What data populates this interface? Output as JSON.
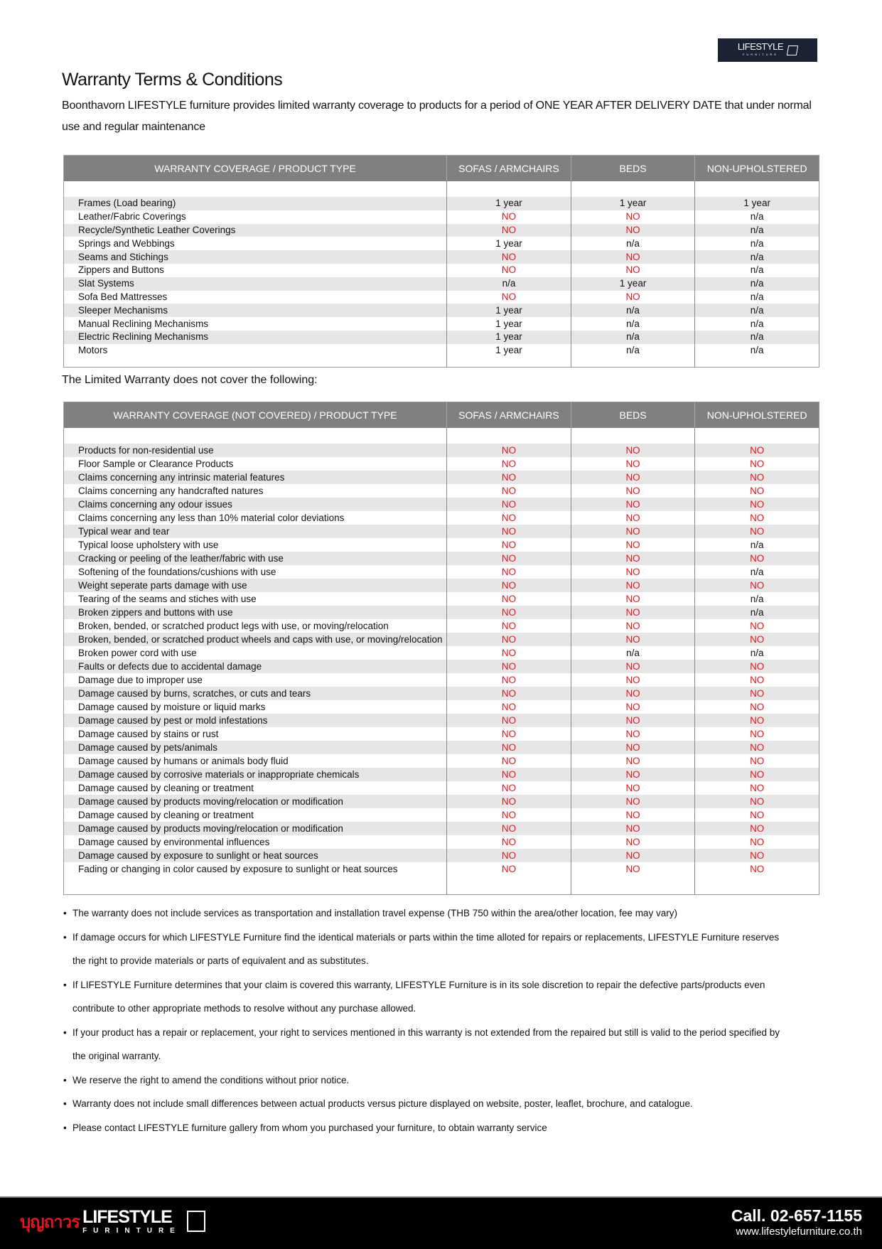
{
  "logo": {
    "brand": "LIFESTYLE",
    "sub": "FURNITURE"
  },
  "title": "Warranty Terms & Conditions",
  "intro": "Boonthavorn LIFESTYLE furniture provides limited warranty coverage to products for a period of ONE YEAR AFTER DELIVERY DATE that under normal use and regular maintenance",
  "colors": {
    "header_bg": "#808080",
    "no_red": "#e0161e",
    "stripe": "#e6e6e6",
    "footer_bg": "#000000"
  },
  "table1": {
    "headers": [
      "WARRANTY COVERAGE / PRODUCT TYPE",
      "SOFAS / ARMCHAIRS",
      "BEDS",
      "NON-UPHOLSTERED"
    ],
    "rows": [
      [
        "Frames (Load bearing)",
        "1 year",
        "1 year",
        "1 year"
      ],
      [
        "Leather/Fabric Coverings",
        "NO",
        "NO",
        "n/a"
      ],
      [
        "Recycle/Synthetic Leather Coverings",
        "NO",
        "NO",
        "n/a"
      ],
      [
        "Springs and Webbings",
        "1 year",
        "n/a",
        "n/a"
      ],
      [
        "Seams and Stichings",
        "NO",
        "NO",
        "n/a"
      ],
      [
        "Zippers and Buttons",
        "NO",
        "NO",
        "n/a"
      ],
      [
        "Slat Systems",
        "n/a",
        "1 year",
        "n/a"
      ],
      [
        "Sofa Bed Mattresses",
        "NO",
        "NO",
        "n/a"
      ],
      [
        "Sleeper Mechanisms",
        "1 year",
        "n/a",
        "n/a"
      ],
      [
        "Manual Reclining Mechanisms",
        "1 year",
        "n/a",
        "n/a"
      ],
      [
        "Electric Reclining Mechanisms",
        "1 year",
        "n/a",
        "n/a"
      ],
      [
        "Motors",
        "1 year",
        "n/a",
        "n/a"
      ]
    ]
  },
  "subtitle": "The Limited Warranty does not cover the following:",
  "table2": {
    "headers": [
      "WARRANTY COVERAGE (NOT COVERED) / PRODUCT TYPE",
      "SOFAS / ARMCHAIRS",
      "BEDS",
      "NON-UPHOLSTERED"
    ],
    "rows": [
      [
        "Products for non-residential use",
        "NO",
        "NO",
        "NO"
      ],
      [
        "Floor Sample or Clearance Products",
        "NO",
        "NO",
        "NO"
      ],
      [
        "Claims concerning any intrinsic material features",
        "NO",
        "NO",
        "NO"
      ],
      [
        "Claims concerning any handcrafted natures",
        "NO",
        "NO",
        "NO"
      ],
      [
        "Claims concerning any odour issues",
        "NO",
        "NO",
        "NO"
      ],
      [
        "Claims concerning any less than 10% material color deviations",
        "NO",
        "NO",
        "NO"
      ],
      [
        "Typical wear and tear",
        "NO",
        "NO",
        "NO"
      ],
      [
        "Typical loose upholstery with use",
        "NO",
        "NO",
        "n/a"
      ],
      [
        "Cracking or peeling of the leather/fabric with use",
        "NO",
        "NO",
        "NO"
      ],
      [
        "Softening of the foundations/cushions with use",
        "NO",
        "NO",
        "n/a"
      ],
      [
        "Weight seperate parts damage with use",
        "NO",
        "NO",
        "NO"
      ],
      [
        "Tearing of the seams and stiches with use",
        "NO",
        "NO",
        "n/a"
      ],
      [
        "Broken zippers and buttons with use",
        "NO",
        "NO",
        "n/a"
      ],
      [
        "Broken, bended, or scratched product legs with use, or moving/relocation",
        "NO",
        "NO",
        "NO"
      ],
      [
        "Broken, bended, or scratched product wheels and caps with use, or moving/relocation",
        "NO",
        "NO",
        "NO"
      ],
      [
        "Broken power cord with use",
        "NO",
        "n/a",
        "n/a"
      ],
      [
        "Faults or defects due to accidental damage",
        "NO",
        "NO",
        "NO"
      ],
      [
        "Damage due to improper use",
        "NO",
        "NO",
        "NO"
      ],
      [
        "Damage caused by burns, scratches, or cuts and tears",
        "NO",
        "NO",
        "NO"
      ],
      [
        "Damage caused by moisture or liquid marks",
        "NO",
        "NO",
        "NO"
      ],
      [
        "Damage caused by pest or mold infestations",
        "NO",
        "NO",
        "NO"
      ],
      [
        "Damage caused by stains or rust",
        "NO",
        "NO",
        "NO"
      ],
      [
        "Damage caused by pets/animals",
        "NO",
        "NO",
        "NO"
      ],
      [
        "Damage caused by humans or animals body fluid",
        "NO",
        "NO",
        "NO"
      ],
      [
        "Damage caused by corrosive materials or inappropriate chemicals",
        "NO",
        "NO",
        "NO"
      ],
      [
        "Damage caused by cleaning or treatment",
        "NO",
        "NO",
        "NO"
      ],
      [
        "Damage caused by products moving/relocation or modification",
        "NO",
        "NO",
        "NO"
      ],
      [
        "Damage caused by cleaning or treatment",
        "NO",
        "NO",
        "NO"
      ],
      [
        "Damage caused by products moving/relocation or modification",
        "NO",
        "NO",
        "NO"
      ],
      [
        "Damage caused by environmental influences",
        "NO",
        "NO",
        "NO"
      ],
      [
        "Damage caused by exposure to sunlight or heat sources",
        "NO",
        "NO",
        "NO"
      ],
      [
        "Fading or changing in color caused by exposure to sunlight or heat sources",
        "NO",
        "NO",
        "NO"
      ]
    ]
  },
  "notes": [
    [
      "The warranty does not include services as transportation and installation travel expense (THB 750 within the area/other location, fee may vary)"
    ],
    [
      "If damage occurs for which LIFESTYLE Furniture find the identical materials or parts within the time alloted for repairs or  replacements, LIFESTYLE Furniture reserves",
      "the right to provide materials or parts of equivalent and as substitutes."
    ],
    [
      "If LIFESTYLE Furniture determines that your claim is covered this warranty, LIFESTYLE Furniture is in its sole discretion to repair the defective parts/products even",
      "contribute to other appropriate methods to resolve without any purchase allowed."
    ],
    [
      "If your product has a repair or replacement, your right to services mentioned in this warranty is not extended from the repaired but still is valid to the period specified by",
      "the original warranty."
    ],
    [
      "We reserve the right to amend the conditions without prior notice."
    ],
    [
      "Warranty does not include small differences between actual products versus picture displayed on website, poster, leaflet, brochure, and catalogue."
    ],
    [
      "Please contact LIFESTYLE furniture gallery from whom you purchased your furniture, to obtain warranty service"
    ]
  ],
  "footer": {
    "thai": "บุญถาวร",
    "brand": "LIFESTYLE",
    "sub": "FURINTURE",
    "phone": "Call. 02-657-1155",
    "website": "www.lifestylefurniture.co.th"
  }
}
